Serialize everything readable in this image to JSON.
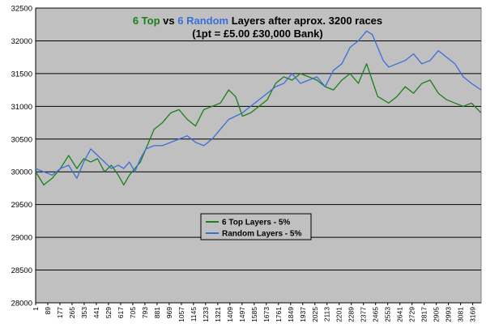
{
  "chart_data": {
    "type": "line",
    "title_parts": [
      {
        "text": "6 Top",
        "color": "#1a7f1a"
      },
      {
        "text": " vs ",
        "color": "#000000"
      },
      {
        "text": "6 Random",
        "color": "#3a6fd8"
      },
      {
        "text": " Layers after aprox. 3200 races",
        "color": "#000000"
      }
    ],
    "subtitle": "(1pt = £5.00  £30,000 Bank)",
    "xlabel": "",
    "ylabel": "",
    "xlim": [
      1,
      3230
    ],
    "ylim": [
      28000,
      32500
    ],
    "yticks": [
      28000,
      28500,
      29000,
      29500,
      30000,
      30500,
      31000,
      31500,
      32000,
      32500
    ],
    "xticks": [
      1,
      89,
      177,
      265,
      353,
      441,
      529,
      617,
      705,
      793,
      881,
      969,
      1057,
      1145,
      1233,
      1321,
      1409,
      1497,
      1585,
      1673,
      1761,
      1849,
      1937,
      2025,
      2113,
      2201,
      2289,
      2377,
      2465,
      2553,
      2641,
      2729,
      2817,
      2905,
      2993,
      3081,
      3169
    ],
    "grid": true,
    "plot_background": "#c0c0c0",
    "legend_position": "center-lower-left",
    "series": [
      {
        "name": "6 Top Layers - 5%",
        "color": "#1a7f1a",
        "x": [
          1,
          60,
          120,
          180,
          240,
          300,
          350,
          400,
          450,
          500,
          550,
          600,
          640,
          680,
          720,
          760,
          800,
          860,
          920,
          980,
          1040,
          1100,
          1160,
          1220,
          1280,
          1340,
          1400,
          1450,
          1500,
          1560,
          1620,
          1680,
          1740,
          1800,
          1860,
          1920,
          1980,
          2040,
          2100,
          2160,
          2220,
          2280,
          2340,
          2400,
          2440,
          2480,
          2520,
          2560,
          2620,
          2680,
          2740,
          2800,
          2860,
          2920,
          2980,
          3040,
          3100,
          3160,
          3230
        ],
        "y": [
          30000,
          29800,
          29900,
          30050,
          30250,
          30050,
          30200,
          30150,
          30200,
          30000,
          30100,
          29950,
          29800,
          29950,
          30050,
          30150,
          30350,
          30650,
          30750,
          30900,
          30950,
          30800,
          30700,
          30950,
          31000,
          31050,
          31250,
          31150,
          30850,
          30900,
          31000,
          31100,
          31350,
          31450,
          31400,
          31500,
          31450,
          31400,
          31300,
          31250,
          31400,
          31500,
          31350,
          31650,
          31400,
          31150,
          31100,
          31050,
          31150,
          31300,
          31200,
          31350,
          31400,
          31200,
          31100,
          31050,
          31000,
          31050,
          30900
        ]
      },
      {
        "name": "Random Layers - 5%",
        "color": "#3a6fd8",
        "x": [
          1,
          60,
          120,
          180,
          240,
          300,
          350,
          400,
          450,
          500,
          550,
          600,
          640,
          680,
          720,
          760,
          800,
          860,
          920,
          980,
          1040,
          1100,
          1160,
          1220,
          1280,
          1340,
          1400,
          1450,
          1500,
          1560,
          1620,
          1680,
          1740,
          1800,
          1860,
          1920,
          1980,
          2040,
          2100,
          2160,
          2220,
          2280,
          2340,
          2400,
          2440,
          2480,
          2520,
          2560,
          2620,
          2680,
          2740,
          2800,
          2860,
          2920,
          2980,
          3040,
          3100,
          3160,
          3230
        ],
        "y": [
          30050,
          30000,
          29950,
          30050,
          30100,
          29900,
          30150,
          30350,
          30250,
          30150,
          30050,
          30100,
          30050,
          30150,
          30000,
          30200,
          30350,
          30400,
          30400,
          30450,
          30500,
          30550,
          30450,
          30400,
          30500,
          30650,
          30800,
          30850,
          30900,
          31000,
          31100,
          31200,
          31300,
          31350,
          31500,
          31350,
          31400,
          31450,
          31300,
          31550,
          31650,
          31900,
          32000,
          32150,
          32100,
          31900,
          31700,
          31600,
          31650,
          31700,
          31800,
          31650,
          31700,
          31850,
          31750,
          31650,
          31450,
          31350,
          31250
        ]
      }
    ]
  }
}
